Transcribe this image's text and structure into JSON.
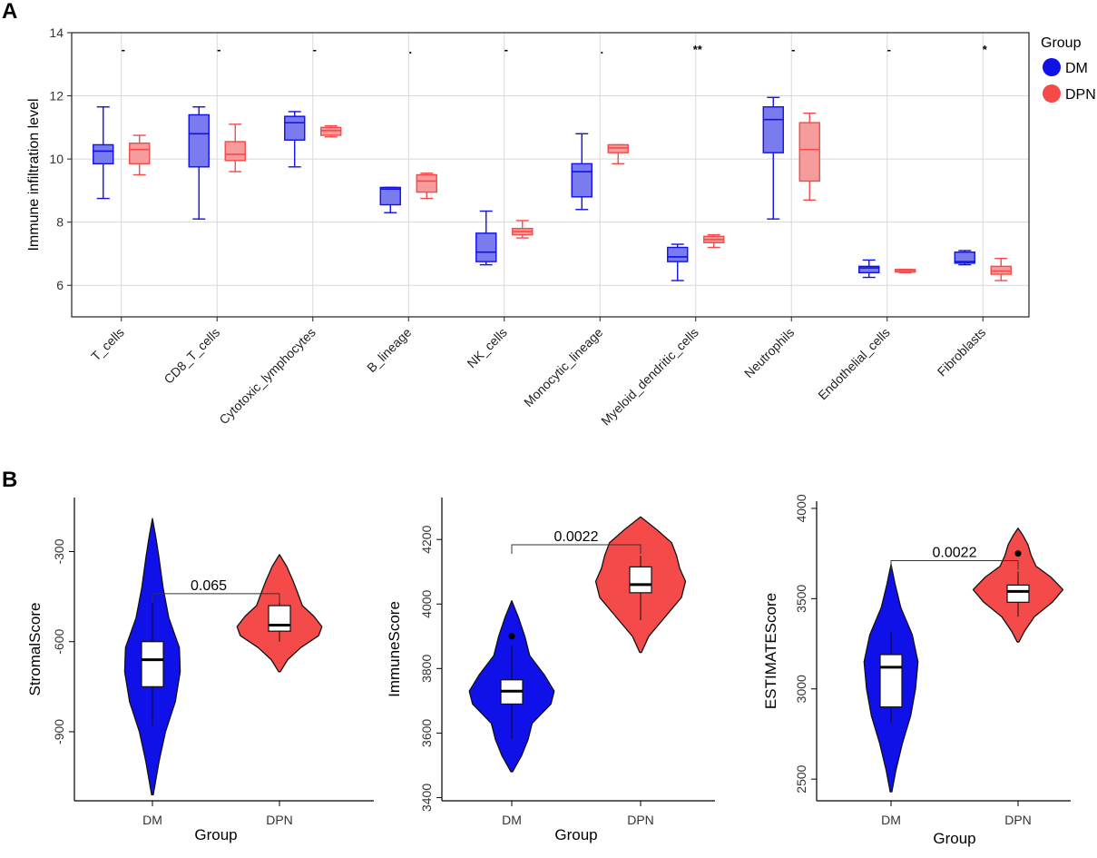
{
  "panels": {
    "a_label": "A",
    "b_label": "B"
  },
  "colors": {
    "dm": "#1010e8",
    "dpn": "#f54a4a",
    "dm_box": "#7b7bf0",
    "dpn_box": "#f79c9c",
    "grid": "#d8d8d8"
  },
  "chart_data": [
    {
      "type": "box",
      "panel": "A",
      "ylabel": "Immune infiltration level",
      "ylim": [
        5,
        14
      ],
      "yticks": [
        6,
        8,
        10,
        12,
        14
      ],
      "grid": true,
      "legend": {
        "title": "Group",
        "position": "right",
        "entries": [
          "DM",
          "DPN"
        ]
      },
      "categories": [
        "T_cells",
        "CD8_T_cells",
        "Cytotoxic_lymphocytes",
        "B_lineage",
        "NK_cells",
        "Monocytic_lineage",
        "Myeloid_dendritic_cells",
        "Neutrophils",
        "Endothelial_cells",
        "Fibroblasts"
      ],
      "significance": [
        "-",
        "-",
        "-",
        ".",
        "-",
        ".",
        "**",
        "-",
        "-",
        "*"
      ],
      "series": [
        {
          "name": "DM",
          "boxes": [
            {
              "min": 8.75,
              "q1": 9.85,
              "median": 10.25,
              "q3": 10.45,
              "max": 11.65
            },
            {
              "min": 8.1,
              "q1": 9.75,
              "median": 10.8,
              "q3": 11.4,
              "max": 11.65
            },
            {
              "min": 9.75,
              "q1": 10.6,
              "median": 11.15,
              "q3": 11.35,
              "max": 11.5
            },
            {
              "min": 8.3,
              "q1": 8.55,
              "median": 9.05,
              "q3": 9.1,
              "max": 9.1
            },
            {
              "min": 6.65,
              "q1": 6.75,
              "median": 7.05,
              "q3": 7.65,
              "max": 8.35
            },
            {
              "min": 8.4,
              "q1": 8.8,
              "median": 9.6,
              "q3": 9.85,
              "max": 10.8
            },
            {
              "min": 6.15,
              "q1": 6.75,
              "median": 6.9,
              "q3": 7.2,
              "max": 7.3
            },
            {
              "min": 8.1,
              "q1": 10.2,
              "median": 11.25,
              "q3": 11.65,
              "max": 11.95
            },
            {
              "min": 6.25,
              "q1": 6.4,
              "median": 6.55,
              "q3": 6.6,
              "max": 6.8
            },
            {
              "min": 6.65,
              "q1": 6.7,
              "median": 6.75,
              "q3": 7.05,
              "max": 7.1
            }
          ]
        },
        {
          "name": "DPN",
          "boxes": [
            {
              "min": 9.5,
              "q1": 9.85,
              "median": 10.3,
              "q3": 10.5,
              "max": 10.75
            },
            {
              "min": 9.6,
              "q1": 9.95,
              "median": 10.15,
              "q3": 10.55,
              "max": 11.1
            },
            {
              "min": 10.7,
              "q1": 10.75,
              "median": 10.9,
              "q3": 11.0,
              "max": 11.05
            },
            {
              "min": 8.75,
              "q1": 8.95,
              "median": 9.3,
              "q3": 9.5,
              "max": 9.55
            },
            {
              "min": 7.5,
              "q1": 7.6,
              "median": 7.7,
              "q3": 7.8,
              "max": 8.05
            },
            {
              "min": 9.85,
              "q1": 10.2,
              "median": 10.35,
              "q3": 10.45,
              "max": 10.45
            },
            {
              "min": 7.2,
              "q1": 7.35,
              "median": 7.45,
              "q3": 7.55,
              "max": 7.6
            },
            {
              "min": 8.7,
              "q1": 9.3,
              "median": 10.3,
              "q3": 11.15,
              "max": 11.45
            },
            {
              "min": 6.4,
              "q1": 6.42,
              "median": 6.47,
              "q3": 6.5,
              "max": 6.5
            },
            {
              "min": 6.15,
              "q1": 6.35,
              "median": 6.45,
              "q3": 6.6,
              "max": 6.85
            }
          ]
        }
      ]
    },
    {
      "type": "violin",
      "panel": "B",
      "xlabel": "Group",
      "ylabel": "StromalScore",
      "ylim": [
        -1130,
        -120
      ],
      "yticks": [
        -300,
        -600,
        -900
      ],
      "categories": [
        "DM",
        "DPN"
      ],
      "p_value": "0.065",
      "groups": [
        {
          "name": "DM",
          "min": -1110,
          "max": -190,
          "box": {
            "min": -880,
            "q1": -750,
            "median": -660,
            "q3": -600,
            "max": -440
          },
          "outliers": [],
          "violin": [
            [
              -1110,
              0.01
            ],
            [
              -1000,
              0.08
            ],
            [
              -900,
              0.16
            ],
            [
              -800,
              0.28
            ],
            [
              -700,
              0.34
            ],
            [
              -620,
              0.33
            ],
            [
              -520,
              0.2
            ],
            [
              -420,
              0.13
            ],
            [
              -320,
              0.08
            ],
            [
              -250,
              0.04
            ],
            [
              -190,
              0.0
            ]
          ]
        },
        {
          "name": "DPN",
          "min": -700,
          "max": -310,
          "box": {
            "min": -600,
            "q1": -565,
            "median": -545,
            "q3": -480,
            "max": -440
          },
          "outliers": [],
          "violin": [
            [
              -700,
              0.01
            ],
            [
              -660,
              0.1
            ],
            [
              -620,
              0.26
            ],
            [
              -580,
              0.48
            ],
            [
              -550,
              0.52
            ],
            [
              -515,
              0.42
            ],
            [
              -480,
              0.28
            ],
            [
              -450,
              0.24
            ],
            [
              -400,
              0.17
            ],
            [
              -350,
              0.09
            ],
            [
              -310,
              0.0
            ]
          ]
        }
      ]
    },
    {
      "type": "violin",
      "panel": "B",
      "xlabel": "Group",
      "ylabel": "ImmuneScore",
      "ylim": [
        3390,
        4330
      ],
      "yticks": [
        3400,
        3600,
        3800,
        4000,
        4200
      ],
      "categories": [
        "DM",
        "DPN"
      ],
      "p_value": "0.0022",
      "groups": [
        {
          "name": "DM",
          "min": 3480,
          "max": 4010,
          "box": {
            "min": 3580,
            "q1": 3690,
            "median": 3730,
            "q3": 3765,
            "max": 3870
          },
          "outliers": [
            3900
          ],
          "violin": [
            [
              3480,
              0.01
            ],
            [
              3530,
              0.12
            ],
            [
              3580,
              0.2
            ],
            [
              3630,
              0.25
            ],
            [
              3690,
              0.48
            ],
            [
              3730,
              0.52
            ],
            [
              3780,
              0.4
            ],
            [
              3840,
              0.22
            ],
            [
              3900,
              0.16
            ],
            [
              3960,
              0.08
            ],
            [
              4010,
              0.0
            ]
          ]
        },
        {
          "name": "DPN",
          "min": 3850,
          "max": 4270,
          "box": {
            "min": 3950,
            "q1": 4035,
            "median": 4060,
            "q3": 4115,
            "max": 4150
          },
          "outliers": [],
          "violin": [
            [
              3850,
              0.01
            ],
            [
              3900,
              0.1
            ],
            [
              3960,
              0.3
            ],
            [
              4020,
              0.5
            ],
            [
              4070,
              0.55
            ],
            [
              4110,
              0.48
            ],
            [
              4150,
              0.44
            ],
            [
              4190,
              0.38
            ],
            [
              4230,
              0.2
            ],
            [
              4270,
              0.0
            ]
          ]
        }
      ]
    },
    {
      "type": "violin",
      "panel": "B",
      "xlabel": "Group",
      "ylabel": "ESTIMATEScore",
      "ylim": [
        2380,
        4040
      ],
      "yticks": [
        2500,
        3000,
        3500,
        4000
      ],
      "categories": [
        "DM",
        "DPN"
      ],
      "p_value": "0.0022",
      "groups": [
        {
          "name": "DM",
          "min": 2430,
          "max": 3690,
          "box": {
            "min": 2810,
            "q1": 2900,
            "median": 3120,
            "q3": 3190,
            "max": 3320
          },
          "outliers": [],
          "violin": [
            [
              2430,
              0.01
            ],
            [
              2550,
              0.06
            ],
            [
              2700,
              0.14
            ],
            [
              2850,
              0.24
            ],
            [
              3000,
              0.3
            ],
            [
              3150,
              0.33
            ],
            [
              3300,
              0.26
            ],
            [
              3450,
              0.12
            ],
            [
              3580,
              0.05
            ],
            [
              3690,
              0.0
            ]
          ]
        },
        {
          "name": "DPN",
          "min": 3260,
          "max": 3890,
          "box": {
            "min": 3400,
            "q1": 3480,
            "median": 3540,
            "q3": 3575,
            "max": 3650
          },
          "outliers": [
            3750
          ],
          "violin": [
            [
              3260,
              0.01
            ],
            [
              3320,
              0.08
            ],
            [
              3400,
              0.2
            ],
            [
              3480,
              0.42
            ],
            [
              3550,
              0.55
            ],
            [
              3620,
              0.4
            ],
            [
              3680,
              0.22
            ],
            [
              3740,
              0.16
            ],
            [
              3800,
              0.12
            ],
            [
              3850,
              0.06
            ],
            [
              3890,
              0.0
            ]
          ]
        }
      ]
    }
  ]
}
